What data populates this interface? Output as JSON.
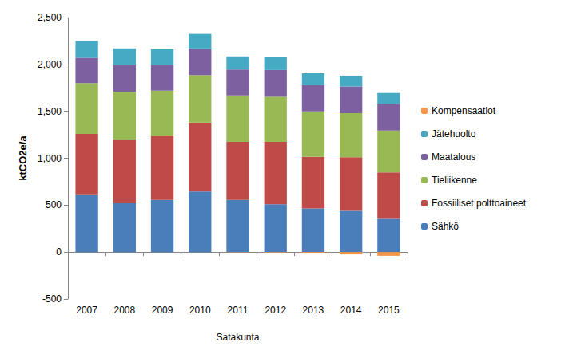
{
  "chart_data": {
    "type": "bar",
    "stacked": true,
    "ylabel": "ktCO2e/a",
    "xlabel": "Satakunta",
    "categories": [
      "2007",
      "2008",
      "2009",
      "2010",
      "2011",
      "2012",
      "2013",
      "2014",
      "2015"
    ],
    "ylim": [
      -500,
      2500
    ],
    "yticks": [
      -500,
      0,
      500,
      1000,
      1500,
      2000,
      2500
    ],
    "grid": false,
    "legend": "right",
    "series": [
      {
        "name": "Sähkö",
        "color": "#4a7ebb",
        "values": [
          615,
          520,
          555,
          645,
          555,
          510,
          465,
          440,
          355
        ]
      },
      {
        "name": "Fossiiliset polttoaineet",
        "color": "#be4b48",
        "values": [
          645,
          680,
          680,
          735,
          620,
          665,
          550,
          570,
          495
        ]
      },
      {
        "name": "Tieliikenne",
        "color": "#98b954",
        "values": [
          540,
          510,
          485,
          505,
          495,
          480,
          485,
          470,
          445
        ]
      },
      {
        "name": "Maatalous",
        "color": "#7d60a0",
        "values": [
          270,
          285,
          275,
          285,
          275,
          285,
          280,
          285,
          285
        ]
      },
      {
        "name": "Jätehuolto",
        "color": "#46aac5",
        "values": [
          180,
          175,
          165,
          155,
          140,
          135,
          125,
          115,
          115
        ]
      },
      {
        "name": "Kompensaatiot",
        "color": "#f79646",
        "values": [
          0,
          0,
          0,
          0,
          -3,
          -5,
          -8,
          -25,
          -40
        ]
      }
    ]
  }
}
